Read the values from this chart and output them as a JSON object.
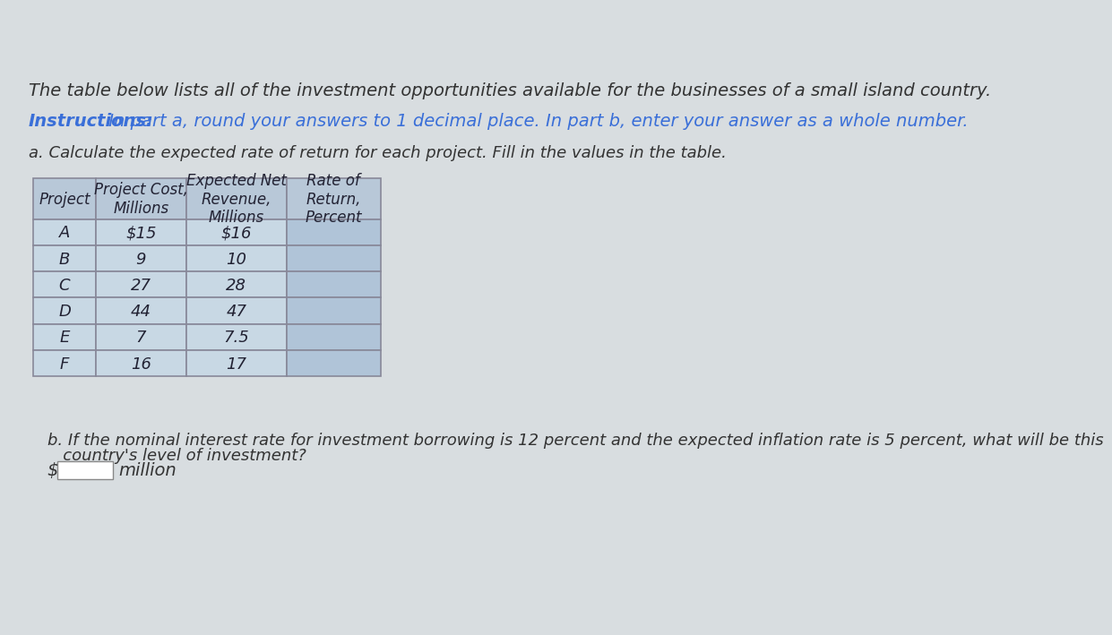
{
  "page_background": "#d8dde0",
  "title_text": "The table below lists all of the investment opportunities available for the businesses of a small island country.",
  "instructions_label": "Instructions:",
  "instructions_text": " In part a, round your answers to 1 decimal place. In part b, enter your answer as a whole number.",
  "part_a_text": "a. Calculate the expected rate of return for each project. Fill in the values in the table.",
  "part_b_line1": "b. If the nominal interest rate for investment borrowing is 12 percent and the expected inflation rate is 5 percent, what will be this",
  "part_b_line2": "   country's level of investment?",
  "dollar_label": "$",
  "million_label": "million",
  "col_headers": [
    "Project",
    "Project Cost,\nMillions",
    "Expected Net\nRevenue,\nMillions",
    "Rate of\nReturn,\nPercent"
  ],
  "projects": [
    "A",
    "B",
    "C",
    "D",
    "E",
    "F"
  ],
  "project_costs": [
    "$15",
    "9",
    "27",
    "44",
    "7",
    "16"
  ],
  "expected_revenues": [
    "$16",
    "10",
    "28",
    "47",
    "7.5",
    "17"
  ],
  "table_header_bg": "#b8c8d8",
  "table_row_bg": "#c8d8e4",
  "table_last_col_bg": "#b0c4d8",
  "table_border_color": "#888899",
  "header_text_color": "#222233",
  "row_text_color": "#222233",
  "title_font_size": 14,
  "instructions_font_size": 14,
  "body_font_size": 13,
  "table_font_size": 13,
  "input_box_color": "#ffffff",
  "instructions_color": "#3a6fd8",
  "title_color": "#333333",
  "body_text_color": "#333333"
}
